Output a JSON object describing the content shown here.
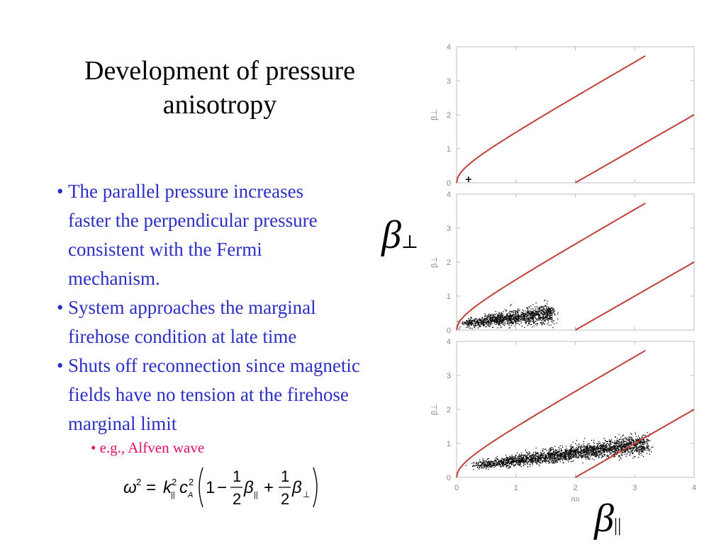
{
  "slide": {
    "title_line1": "Development of pressure",
    "title_line2": "anisotropy",
    "bullets": [
      {
        "lines": [
          "The parallel pressure increases",
          "faster the perpendicular pressure",
          "consistent with the Fermi",
          "mechanism."
        ]
      },
      {
        "lines": [
          "System approaches the marginal",
          "firehose condition at late time"
        ]
      },
      {
        "lines": [
          "Shuts off reconnection since magnetic",
          "fields have no tension at the firehose",
          "marginal limit"
        ]
      }
    ],
    "sub_bullet": "e.g., Alfven wave",
    "bullet_symbol": "•",
    "equation": {
      "lhs": "ω",
      "lhs_sup": "2",
      "equals": "=",
      "k": "k",
      "k_sup": "2",
      "k_sub": "||",
      "c": "c",
      "c_sup": "2",
      "c_sub": "A",
      "one": "1",
      "minus": "−",
      "plus": "+",
      "frac_num": "1",
      "frac_den": "2",
      "beta": "β",
      "par_sub": "||",
      "perp_sub": "⊥"
    },
    "beta_perp_label": {
      "symbol": "β",
      "sub": "⊥"
    },
    "beta_par_label": {
      "symbol": "β",
      "sub": "||"
    }
  },
  "chart_data": [
    {
      "type": "scatter",
      "panel": "top",
      "ylabel": "β⊥",
      "xlim": [
        0,
        4
      ],
      "ylim": [
        0,
        4
      ],
      "yticks": [
        "0",
        "1",
        "2",
        "3",
        "4"
      ],
      "curves": [
        {
          "name": "",
          "x": [
            0,
            0.25,
            0.5,
            1,
            1.5,
            2,
            2.5,
            3
          ],
          "y": [
            0,
            0.54,
            0.84,
            1.37,
            1.87,
            2.37,
            2.87,
            3.37
          ]
        },
        {
          "name": "",
          "x": [
            2,
            3,
            4
          ],
          "y": [
            0,
            1,
            2
          ]
        }
      ],
      "points": [
        {
          "x": 0.2,
          "y": 0.1,
          "marker": "+"
        }
      ]
    },
    {
      "type": "scatter",
      "panel": "middle",
      "ylabel": "β⊥",
      "xlim": [
        0,
        4
      ],
      "ylim": [
        0,
        4
      ],
      "yticks": [
        "0",
        "1",
        "2",
        "3",
        "4"
      ],
      "curves": [
        {
          "name": "",
          "x": [
            0,
            0.25,
            0.5,
            1,
            1.5,
            2,
            2.5,
            3
          ],
          "y": [
            0,
            0.54,
            0.84,
            1.37,
            1.87,
            2.37,
            2.87,
            3.37
          ]
        },
        {
          "name": "",
          "x": [
            2,
            3,
            4
          ],
          "y": [
            0,
            1,
            2
          ]
        }
      ],
      "scatter_cloud": {
        "x_range": [
          0.1,
          1.6
        ],
        "y_range": [
          0.05,
          0.6
        ]
      }
    },
    {
      "type": "scatter",
      "panel": "bottom",
      "ylabel": "β⊥",
      "xlabel": "β||",
      "xlim": [
        0,
        4
      ],
      "ylim": [
        0,
        4
      ],
      "xticks": [
        "0",
        "1",
        "2",
        "3",
        "4"
      ],
      "yticks": [
        "0",
        "1",
        "2",
        "3",
        "4"
      ],
      "curves": [
        {
          "name": "",
          "x": [
            0,
            0.25,
            0.5,
            1,
            1.5,
            2,
            2.5,
            3
          ],
          "y": [
            0,
            0.54,
            0.84,
            1.37,
            1.87,
            2.37,
            2.87,
            3.37
          ]
        },
        {
          "name": "",
          "x": [
            2,
            3,
            4
          ],
          "y": [
            0,
            1,
            2
          ]
        }
      ],
      "scatter_cloud": {
        "x_range": [
          0.3,
          3.2
        ],
        "y_range": [
          0.2,
          1.4
        ]
      }
    }
  ],
  "colors": {
    "bullet_text": "#2b2fc4",
    "sub_bullet": "#e0106a",
    "curve": "#c0403a",
    "frame": "#bfbfbf",
    "tick_text": "#888888"
  }
}
